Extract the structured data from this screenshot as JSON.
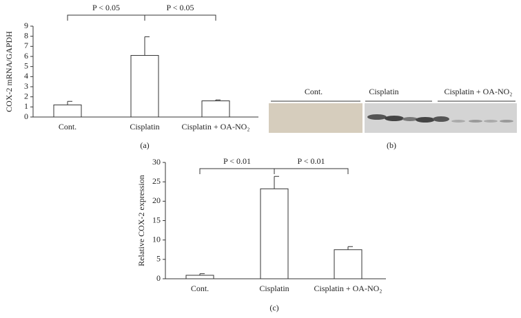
{
  "chart_data": [
    {
      "type": "bar",
      "y_label": "COX-2 mRNA/GAPDH",
      "categories": [
        "Cont.",
        "Cisplatin",
        "Cisplatin + OA-NO₂"
      ],
      "values": [
        1.2,
        6.1,
        1.6
      ],
      "errors": [
        0.35,
        1.85,
        0.1
      ],
      "color": "#ffffff",
      "ylim": [
        0,
        9
      ],
      "yticks": [
        0,
        1,
        2,
        3,
        4,
        5,
        6,
        7,
        8,
        9
      ],
      "annotations": [
        "P < 0.05",
        "P < 0.05"
      ],
      "panel_label": "(a)"
    },
    {
      "type": "bar",
      "y_label": "Relative COX-2 expression",
      "categories": [
        "Cont.",
        "Cisplatin",
        "Cisplatin + OA-NO₂"
      ],
      "values": [
        0.9,
        23.2,
        7.5
      ],
      "errors": [
        0.4,
        3.2,
        0.8
      ],
      "color": "#ffffff",
      "ylim": [
        0,
        30
      ],
      "yticks": [
        0,
        5,
        10,
        15,
        20,
        25,
        30
      ],
      "annotations": [
        "P < 0.01",
        "P < 0.01"
      ],
      "panel_label": "(c)"
    }
  ],
  "blot": {
    "lanes": [
      "Cont.",
      "Cisplatin",
      "Cisplatin + OA-NO₂"
    ],
    "panel_label": "(b)"
  }
}
